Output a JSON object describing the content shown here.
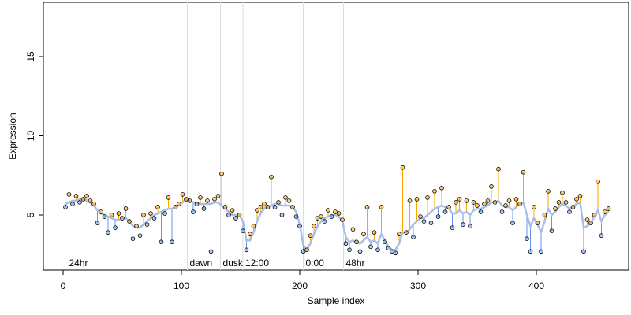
{
  "chart_data": {
    "type": "residual-scatter",
    "xlabel": "Sample index",
    "ylabel": "Expression",
    "xlim": [
      -16.67,
      478
    ],
    "ylim": [
      1.52,
      18.43
    ],
    "xticks": [
      0,
      100,
      200,
      300,
      400
    ],
    "yticks": [
      5,
      10,
      15
    ],
    "colors": {
      "above": "#ffa500",
      "below": "#6495ed",
      "fit": "#a9bde6",
      "phase_line": "#dddddd",
      "phase_label": "#aaaaaa"
    },
    "phases": [
      {
        "x": 3,
        "label": "24hr",
        "boundary": false
      },
      {
        "x": 105,
        "label": "dawn",
        "boundary": true
      },
      {
        "x": 133,
        "label": "dusk",
        "boundary": true
      },
      {
        "x": 152,
        "label": "12:00",
        "boundary": true
      },
      {
        "x": 203,
        "label": "0:00",
        "boundary": true
      },
      {
        "x": 237,
        "label": "48hr",
        "boundary": true
      }
    ],
    "x": [
      2,
      5,
      8,
      11,
      14,
      17,
      20,
      23,
      26,
      29,
      32,
      35,
      38,
      41,
      44,
      47,
      50,
      53,
      56,
      59,
      62,
      65,
      68,
      71,
      74,
      77,
      80,
      83,
      86,
      89,
      92,
      95,
      98,
      101,
      104,
      107,
      110,
      113,
      116,
      119,
      122,
      125,
      128,
      131,
      134,
      137,
      140,
      143,
      146,
      149,
      152,
      155,
      158,
      161,
      164,
      167,
      170,
      173,
      176,
      179,
      182,
      185,
      188,
      191,
      194,
      197,
      200,
      203,
      206,
      209,
      212,
      215,
      218,
      221,
      224,
      227,
      230,
      233,
      236,
      239,
      242,
      245,
      248,
      251,
      254,
      257,
      260,
      263,
      266,
      269,
      272,
      275,
      278,
      281,
      284,
      287,
      290,
      293,
      296,
      299,
      302,
      305,
      308,
      311,
      314,
      317,
      320,
      323,
      326,
      329,
      332,
      335,
      338,
      341,
      344,
      347,
      350,
      353,
      356,
      359,
      362,
      365,
      368,
      371,
      374,
      377,
      380,
      383,
      386,
      389,
      392,
      395,
      398,
      401,
      404,
      407,
      410,
      413,
      416,
      419,
      422,
      425,
      428,
      431,
      434,
      437,
      440,
      443,
      446,
      449,
      452,
      455,
      458,
      461
    ],
    "y": [
      5.5,
      6.3,
      5.7,
      6.2,
      5.8,
      6.0,
      6.2,
      5.9,
      5.7,
      4.5,
      5.2,
      4.9,
      3.9,
      5.0,
      4.2,
      5.1,
      4.8,
      5.4,
      4.6,
      3.5,
      4.3,
      3.7,
      5.0,
      4.4,
      5.1,
      4.8,
      5.5,
      3.3,
      5.1,
      6.1,
      3.3,
      5.5,
      5.7,
      6.3,
      6.0,
      5.9,
      5.2,
      5.7,
      6.1,
      5.4,
      5.9,
      2.7,
      6.0,
      6.2,
      7.6,
      5.5,
      5.0,
      5.3,
      4.8,
      5.0,
      4.0,
      2.8,
      3.8,
      4.3,
      5.3,
      5.5,
      5.7,
      5.5,
      7.4,
      5.5,
      5.8,
      5.0,
      6.1,
      5.9,
      5.5,
      4.9,
      4.3,
      2.7,
      2.8,
      3.7,
      4.3,
      4.8,
      4.9,
      4.6,
      5.3,
      4.9,
      5.2,
      5.1,
      4.7,
      3.2,
      2.8,
      4.1,
      3.3,
      2.7,
      3.8,
      5.5,
      3.0,
      3.9,
      2.8,
      5.5,
      3.3,
      2.9,
      2.7,
      2.6,
      3.8,
      8.0,
      3.9,
      5.9,
      3.6,
      6.0,
      4.9,
      4.6,
      6.1,
      4.5,
      6.5,
      4.9,
      6.7,
      5.2,
      5.5,
      4.2,
      5.8,
      6.0,
      4.4,
      5.9,
      4.3,
      5.8,
      5.6,
      5.2,
      5.7,
      5.9,
      6.8,
      5.8,
      7.9,
      5.2,
      5.6,
      5.9,
      4.5,
      6.0,
      5.7,
      7.7,
      3.5,
      2.7,
      5.5,
      4.5,
      2.7,
      5.0,
      6.5,
      4.0,
      5.4,
      5.8,
      6.4,
      5.8,
      5.2,
      5.5,
      6.0,
      6.2,
      2.7,
      4.7,
      4.5,
      5.0,
      7.1,
      3.7,
      5.2,
      5.4
    ],
    "fit": [
      5.7,
      5.8,
      5.9,
      5.9,
      6.0,
      6.0,
      5.9,
      5.8,
      5.6,
      5.3,
      5.1,
      5.0,
      4.9,
      4.8,
      4.7,
      4.7,
      4.8,
      4.8,
      4.6,
      4.3,
      4.2,
      4.2,
      4.4,
      4.6,
      4.8,
      5.0,
      5.1,
      5.2,
      5.3,
      5.4,
      5.4,
      5.5,
      5.6,
      5.8,
      6.0,
      5.9,
      5.8,
      5.8,
      5.7,
      5.7,
      5.7,
      5.7,
      5.8,
      5.8,
      5.6,
      5.4,
      5.2,
      5.0,
      5.0,
      5.0,
      4.6,
      3.4,
      3.4,
      3.9,
      4.6,
      5.1,
      5.4,
      5.5,
      5.6,
      5.7,
      5.7,
      5.6,
      5.6,
      5.6,
      5.5,
      5.2,
      4.4,
      3.1,
      2.8,
      3.2,
      3.8,
      4.3,
      4.6,
      4.8,
      4.9,
      5.0,
      5.0,
      4.9,
      4.6,
      3.6,
      3.3,
      3.4,
      3.3,
      3.2,
      3.4,
      3.6,
      3.3,
      3.4,
      3.2,
      3.8,
      3.4,
      3.0,
      2.8,
      2.8,
      3.2,
      3.9,
      3.9,
      4.1,
      4.4,
      4.6,
      4.8,
      4.8,
      5.0,
      5.2,
      5.4,
      5.5,
      5.6,
      5.5,
      5.4,
      5.1,
      5.1,
      5.3,
      5.1,
      5.2,
      5.0,
      5.3,
      5.4,
      5.4,
      5.5,
      5.6,
      5.8,
      5.8,
      5.9,
      5.6,
      5.5,
      5.5,
      5.3,
      5.5,
      5.7,
      5.8,
      5.0,
      4.3,
      4.8,
      4.4,
      3.9,
      4.6,
      5.4,
      5.0,
      5.2,
      5.5,
      5.7,
      5.6,
      5.4,
      5.5,
      5.7,
      5.8,
      4.2,
      4.3,
      4.5,
      4.9,
      5.3,
      4.6,
      5.0,
      5.2
    ]
  }
}
